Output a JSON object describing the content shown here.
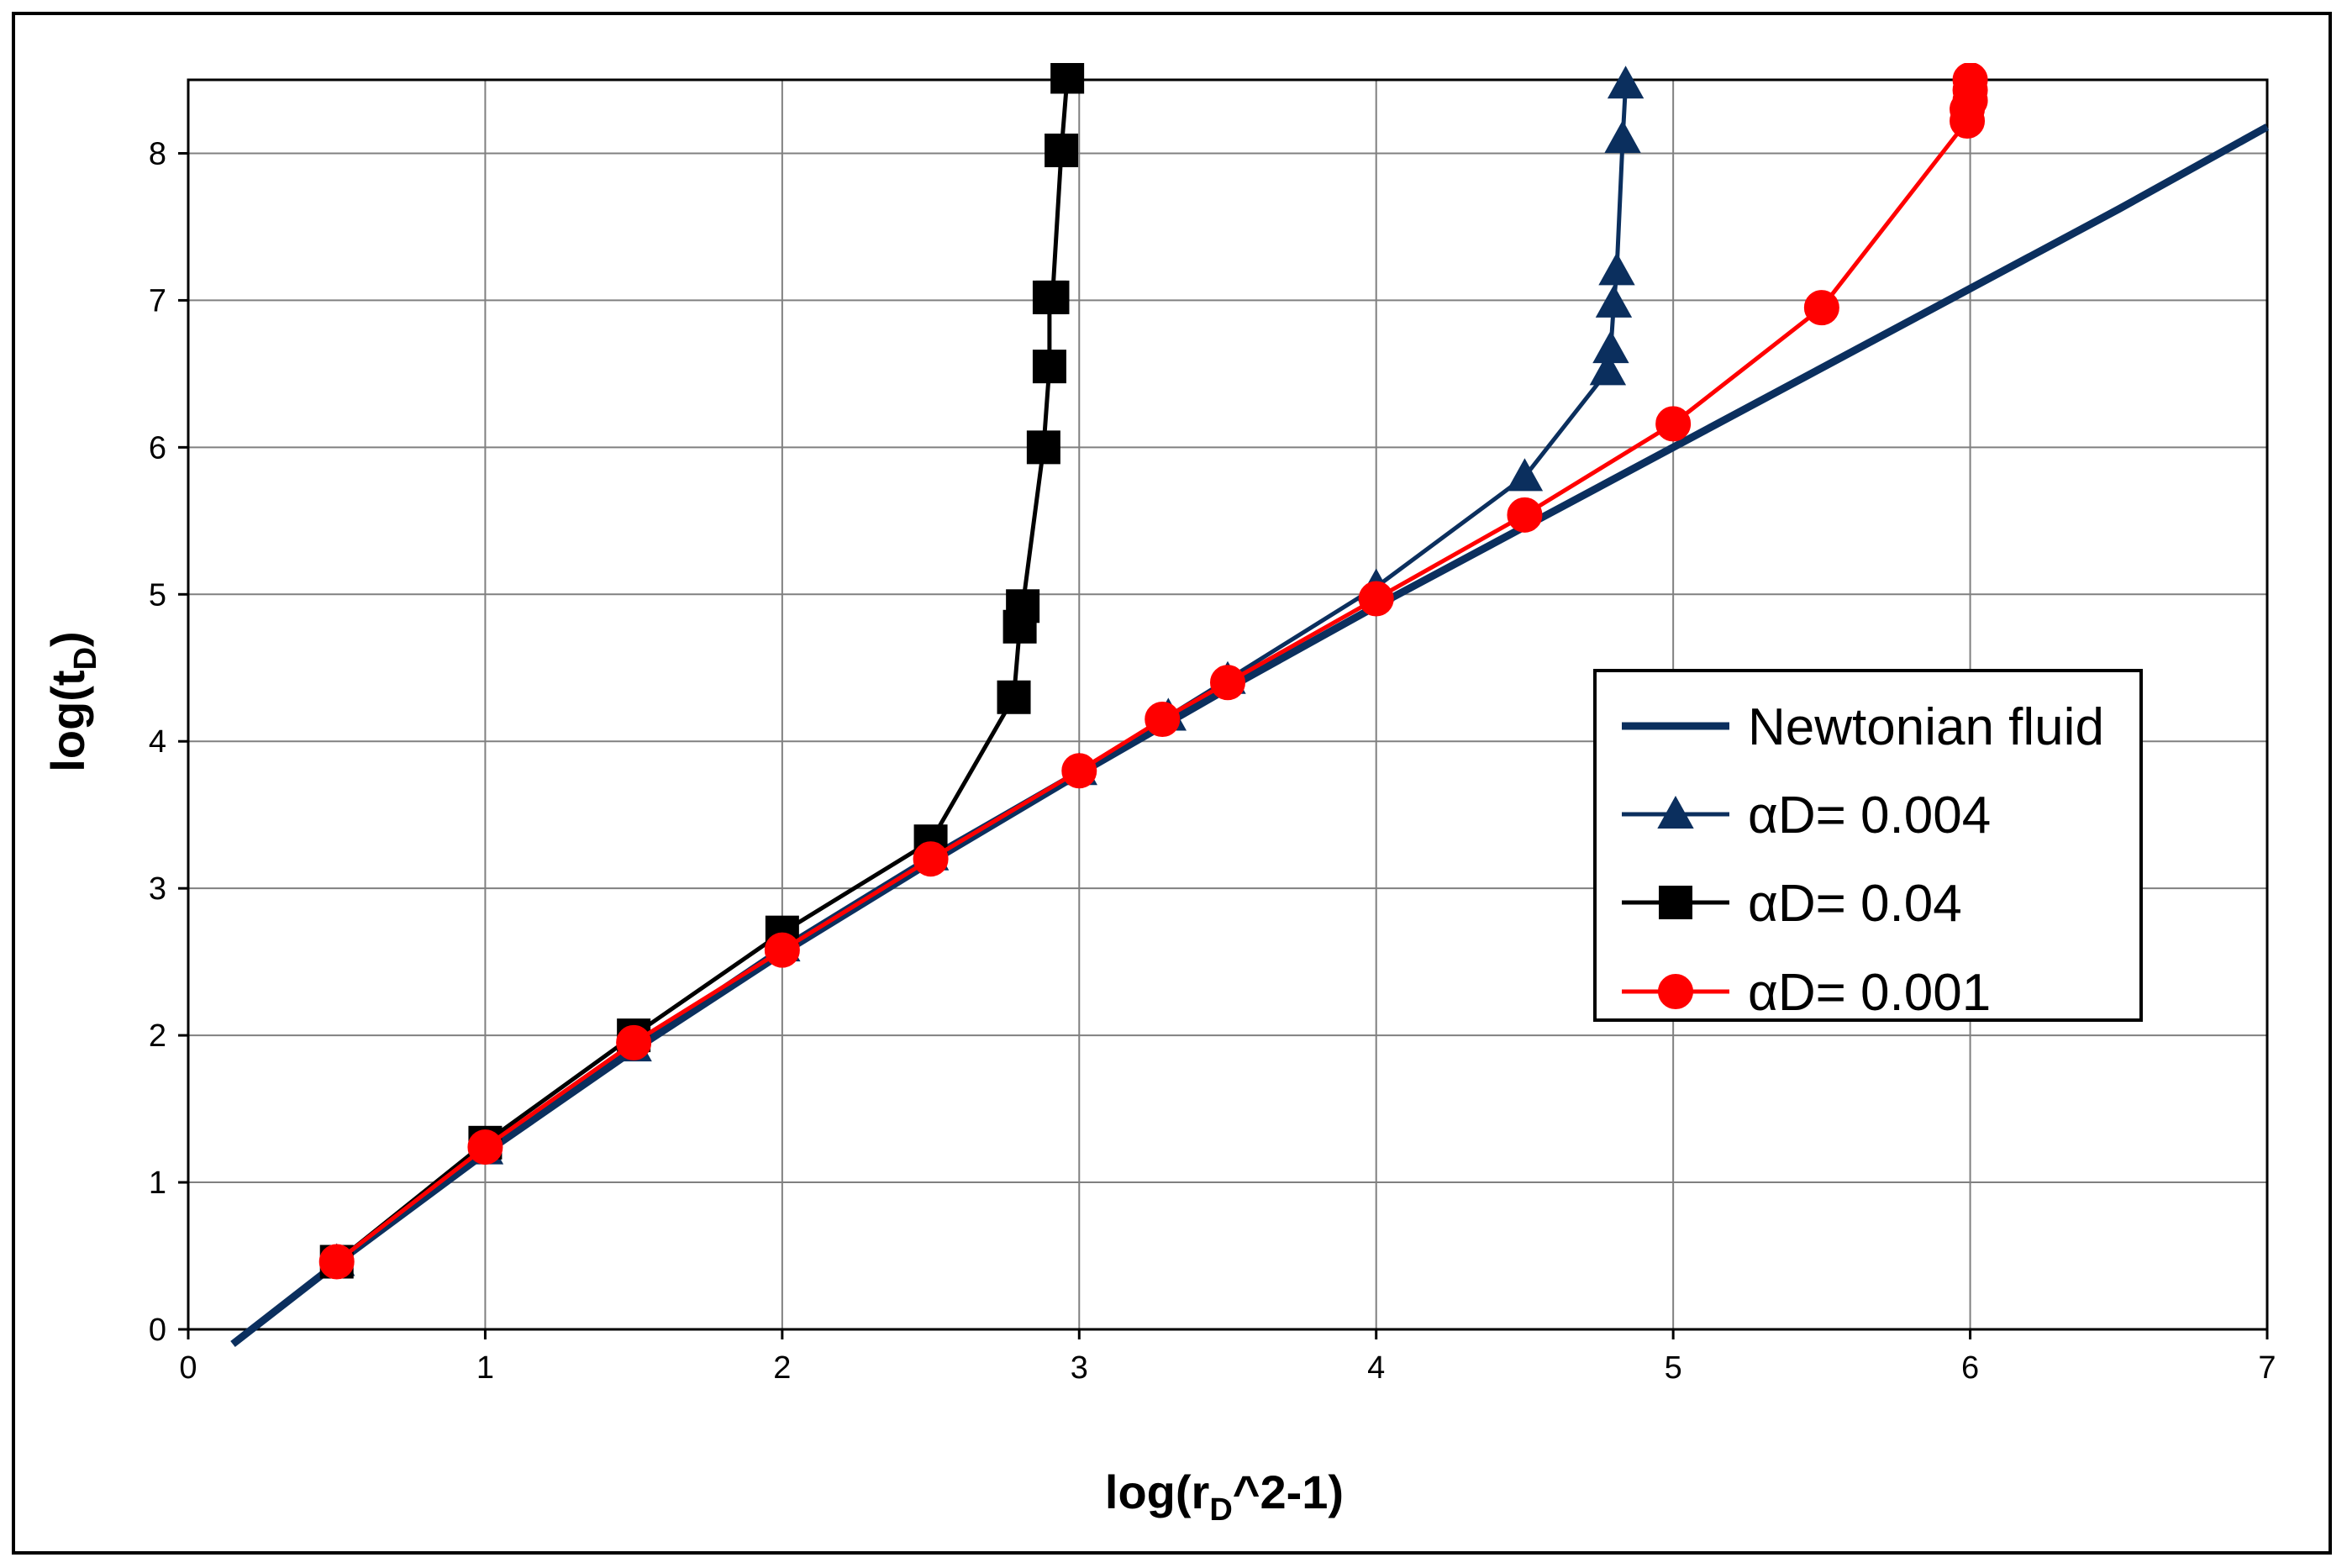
{
  "chart_data": {
    "type": "line",
    "xlabel": {
      "main": "log(r",
      "sub": "D",
      "tail": "^2-1)"
    },
    "ylabel": {
      "main": "log(t",
      "sub": "D",
      "tail": ")"
    },
    "xlim": [
      0,
      7
    ],
    "ylim": [
      0,
      8.5
    ],
    "xticks": [
      "0",
      "1",
      "2",
      "3",
      "4",
      "5",
      "6",
      "7"
    ],
    "yticks": [
      "0",
      "1",
      "2",
      "3",
      "4",
      "5",
      "6",
      "7",
      "8"
    ],
    "grid": true,
    "legend_position": "right",
    "series": [
      {
        "name": "Newtonian fluid",
        "color": "#0b2f5e",
        "marker": "none",
        "x": [
          0.15,
          0.5,
          1.0,
          1.5,
          2.0,
          2.5,
          3.0,
          3.5,
          4.0,
          4.5,
          5.0,
          5.5,
          6.0,
          6.5,
          7.0
        ],
        "y": [
          -0.1,
          0.45,
          1.2,
          1.9,
          2.56,
          3.18,
          3.78,
          4.36,
          4.92,
          5.46,
          6.0,
          6.54,
          7.08,
          7.62,
          8.18
        ]
      },
      {
        "name": "αD= 0.004",
        "color": "#0b2f5e",
        "marker": "triangle",
        "x": [
          0.5,
          1.0,
          1.5,
          2.0,
          2.5,
          3.0,
          3.3,
          3.5,
          4.0,
          4.5,
          4.78,
          4.79,
          4.8,
          4.81,
          4.83,
          4.84
        ],
        "y": [
          0.46,
          1.22,
          1.92,
          2.6,
          3.22,
          3.8,
          4.17,
          4.42,
          5.05,
          5.8,
          6.52,
          6.67,
          6.98,
          7.2,
          8.1,
          8.47
        ]
      },
      {
        "name": "αD= 0.04",
        "color": "#000000",
        "marker": "square",
        "x": [
          0.5,
          1.0,
          1.5,
          2.0,
          2.5,
          2.78,
          2.8,
          2.81,
          2.88,
          2.9,
          2.9,
          2.91,
          2.94,
          2.96
        ],
        "y": [
          0.46,
          1.27,
          2.0,
          2.7,
          3.32,
          4.3,
          4.78,
          4.92,
          6.0,
          6.55,
          7.02,
          7.02,
          8.02,
          8.52
        ]
      },
      {
        "name": "αD= 0.001",
        "color": "#ff0000",
        "marker": "circle",
        "x": [
          0.5,
          1.0,
          1.5,
          2.0,
          2.5,
          3.0,
          3.28,
          3.5,
          4.0,
          4.5,
          5.0,
          5.5,
          5.99,
          5.99,
          6.0,
          6.0,
          6.0
        ],
        "y": [
          0.46,
          1.24,
          1.95,
          2.58,
          3.2,
          3.8,
          4.15,
          4.4,
          4.97,
          5.54,
          6.16,
          6.95,
          8.22,
          8.3,
          8.36,
          8.43,
          8.5
        ]
      }
    ]
  }
}
